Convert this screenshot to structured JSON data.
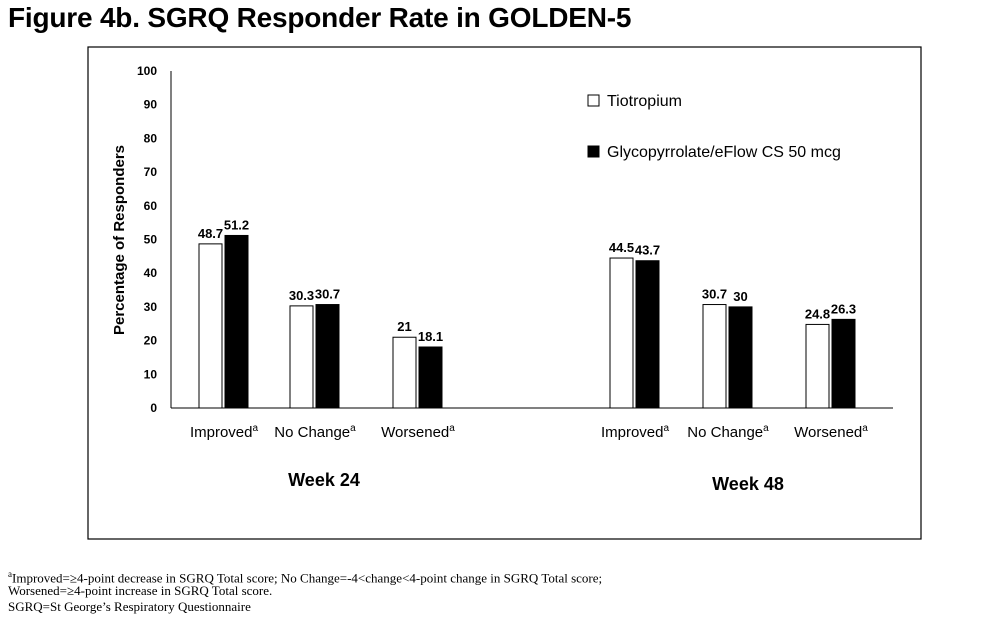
{
  "title": "Figure 4b. SGRQ Responder Rate in GOLDEN-5",
  "footnotes": {
    "line1_sup": "a",
    "line1": "Improved=≥4-point decrease in SGRQ Total score; No Change=-4<change<4-point change in SGRQ Total score;",
    "line2": "Worsened=≥4-point increase in SGRQ Total score.",
    "line3": "SGRQ=St George’s Respiratory Questionnaire"
  },
  "chart_data": {
    "type": "bar",
    "ylabel": "Percentage of Responders",
    "ylim": [
      0,
      100
    ],
    "yticks": [
      0,
      10,
      20,
      30,
      40,
      50,
      60,
      70,
      80,
      90,
      100
    ],
    "grid": false,
    "legend_position": "top-right",
    "category_superscript": "a",
    "groups": [
      {
        "label": "Week 24",
        "categories": [
          "Improved",
          "No Change",
          "Worsened"
        ]
      },
      {
        "label": "Week 48",
        "categories": [
          "Improved",
          "No Change",
          "Worsened"
        ]
      }
    ],
    "series": [
      {
        "name": "Tiotropium",
        "color": "#ffffff",
        "values": [
          48.7,
          30.3,
          21,
          44.5,
          30.7,
          24.8
        ],
        "labels": [
          "48.7",
          "30.3",
          "21",
          "44.5",
          "30.7",
          "24.8"
        ]
      },
      {
        "name": "Glycopyrrolate/eFlow CS 50 mcg",
        "color": "#000000",
        "values": [
          51.2,
          30.7,
          18.1,
          43.7,
          30,
          26.3
        ],
        "labels": [
          "51.2",
          "30.7",
          "18.1",
          "43.7",
          "30",
          "26.3"
        ]
      }
    ]
  }
}
